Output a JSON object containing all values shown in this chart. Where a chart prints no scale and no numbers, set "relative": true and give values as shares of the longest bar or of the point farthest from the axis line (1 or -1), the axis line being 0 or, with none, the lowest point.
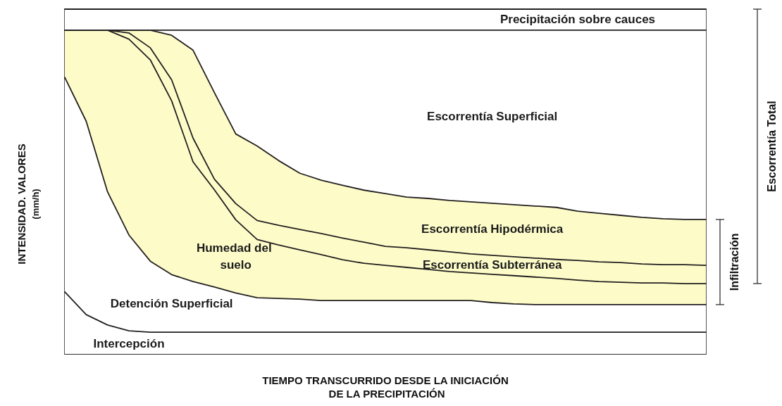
{
  "chart_data": {
    "type": "area",
    "stacked": true,
    "relative": true,
    "xlabel": "TIEMPO TRANSCURRIDO DESDE LA INICIACIÓN DE LA PRECIPITACIÓN",
    "ylabel": "INTENSIDAD. VALORES (mm/h)",
    "annotations": [
      "Infiltración",
      "Escorrentía Total"
    ],
    "categories": [
      null,
      null,
      null,
      null,
      null,
      null,
      null,
      null,
      null,
      null,
      null,
      null,
      null,
      null,
      null,
      null,
      null,
      null,
      null,
      null,
      null,
      null,
      null,
      null,
      null,
      null,
      null,
      null,
      null,
      null,
      null
    ],
    "series": [
      {
        "name": "Intercepción",
        "color": "#ffffff",
        "values": [
          0.18,
          0.114,
          0.084,
          0.067,
          0.063,
          0.063,
          0.063,
          0.063,
          0.063,
          0.063,
          0.063,
          0.063,
          0.063,
          0.063,
          0.063,
          0.063,
          0.063,
          0.063,
          0.063,
          0.063,
          0.063,
          0.063,
          0.063,
          0.063,
          0.063,
          0.063,
          0.063,
          0.063,
          0.063,
          0.063,
          0.063
        ]
      },
      {
        "name": "Detención Superficial",
        "color": "#ffffff",
        "values": [
          0.622,
          0.561,
          0.386,
          0.278,
          0.206,
          0.167,
          0.147,
          0.131,
          0.114,
          0.1,
          0.098,
          0.096,
          0.092,
          0.092,
          0.092,
          0.092,
          0.092,
          0.092,
          0.092,
          0.092,
          0.086,
          0.082,
          0.08,
          0.08,
          0.08,
          0.08,
          0.08,
          0.08,
          0.08,
          0.08,
          0.08
        ]
      },
      {
        "name": "Humedad del suelo",
        "color": "#fdfcc9",
        "values": [
          0.137,
          0.264,
          0.469,
          0.568,
          0.584,
          0.504,
          0.347,
          0.282,
          0.212,
          0.169,
          0.155,
          0.143,
          0.133,
          0.118,
          0.108,
          0.102,
          0.096,
          0.09,
          0.084,
          0.08,
          0.082,
          0.082,
          0.08,
          0.076,
          0.071,
          0.067,
          0.065,
          0.063,
          0.063,
          0.061,
          0.061
        ]
      },
      {
        "name": "Escorrentía Subterránea",
        "color": "#fdfcc9",
        "values": [
          0,
          0,
          0,
          0.018,
          0.035,
          0.061,
          0.069,
          0.031,
          0.047,
          0.055,
          0.057,
          0.059,
          0.061,
          0.063,
          0.061,
          0.055,
          0.057,
          0.057,
          0.057,
          0.055,
          0.055,
          0.055,
          0.055,
          0.055,
          0.057,
          0.057,
          0.057,
          0.055,
          0.053,
          0.055,
          0.053
        ]
      },
      {
        "name": "Escorrentía Hipodérmica",
        "color": "#fdfcc9",
        "values": [
          0,
          0,
          0,
          0.008,
          0.051,
          0.129,
          0.255,
          0.251,
          0.202,
          0.216,
          0.188,
          0.163,
          0.155,
          0.153,
          0.151,
          0.153,
          0.147,
          0.149,
          0.149,
          0.151,
          0.151,
          0.151,
          0.151,
          0.151,
          0.143,
          0.141,
          0.137,
          0.135,
          0.133,
          0.131,
          0.133
        ]
      },
      {
        "name": "Escorrentía Superficial",
        "color": "#ffffff",
        "values": [
          0,
          0,
          0,
          0,
          0,
          0.015,
          0.058,
          0.181,
          0.301,
          0.336,
          0.378,
          0.415,
          0.435,
          0.45,
          0.464,
          0.474,
          0.484,
          0.488,
          0.494,
          0.498,
          0.502,
          0.506,
          0.51,
          0.514,
          0.525,
          0.531,
          0.537,
          0.543,
          0.547,
          0.549,
          0.549
        ]
      },
      {
        "name": "Precipitación sobre cauces",
        "color": "#ffffff",
        "values": [
          0.061,
          0.061,
          0.061,
          0.061,
          0.061,
          0.061,
          0.061,
          0.061,
          0.061,
          0.061,
          0.061,
          0.061,
          0.061,
          0.061,
          0.061,
          0.061,
          0.061,
          0.061,
          0.061,
          0.061,
          0.061,
          0.061,
          0.061,
          0.061,
          0.061,
          0.061,
          0.061,
          0.061,
          0.061,
          0.061,
          0.061
        ]
      }
    ]
  }
}
